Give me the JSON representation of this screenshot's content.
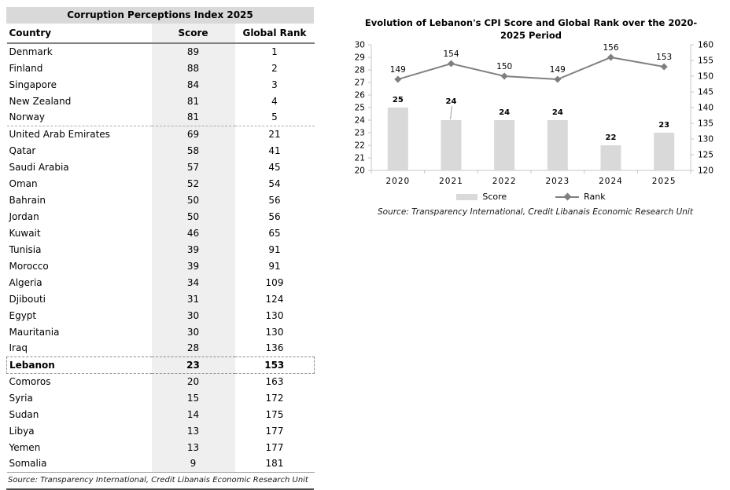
{
  "table": {
    "highlight_country": "Lebanon",
    "separator_after": "Norway",
    "source": "Source: Transparency International, Credit Libanais Economic Research Unit"
  },
  "chart": {
    "source": "Source: Transparency International, Credit Libanais Economic Research Unit"
  },
  "chart_data": [
    {
      "type": "table",
      "title": "Corruption Perceptions Index 2025",
      "columns": [
        "Country",
        "Score",
        "Global Rank"
      ],
      "rows": [
        [
          "Denmark",
          89,
          1
        ],
        [
          "Finland",
          88,
          2
        ],
        [
          "Singapore",
          84,
          3
        ],
        [
          "New Zealand",
          81,
          4
        ],
        [
          "Norway",
          81,
          5
        ],
        [
          "United Arab Emirates",
          69,
          21
        ],
        [
          "Qatar",
          58,
          41
        ],
        [
          "Saudi Arabia",
          57,
          45
        ],
        [
          "Oman",
          52,
          54
        ],
        [
          "Bahrain",
          50,
          56
        ],
        [
          "Jordan",
          50,
          56
        ],
        [
          "Kuwait",
          46,
          65
        ],
        [
          "Tunisia",
          39,
          91
        ],
        [
          "Morocco",
          39,
          91
        ],
        [
          "Algeria",
          34,
          109
        ],
        [
          "Djibouti",
          31,
          124
        ],
        [
          "Egypt",
          30,
          130
        ],
        [
          "Mauritania",
          30,
          130
        ],
        [
          "Iraq",
          28,
          136
        ],
        [
          "Lebanon",
          23,
          153
        ],
        [
          "Comoros",
          20,
          163
        ],
        [
          "Syria",
          15,
          172
        ],
        [
          "Sudan",
          14,
          175
        ],
        [
          "Libya",
          13,
          177
        ],
        [
          "Yemen",
          13,
          177
        ],
        [
          "Somalia",
          9,
          181
        ]
      ]
    },
    {
      "type": "bar",
      "title": "Evolution of Lebanon's CPI Score and Global Rank over the 2020-2025 Period",
      "categories": [
        "2020",
        "2021",
        "2022",
        "2023",
        "2024",
        "2025"
      ],
      "series": [
        {
          "name": "Score",
          "type": "bar",
          "axis": "left",
          "values": [
            25,
            24,
            24,
            24,
            22,
            23
          ]
        },
        {
          "name": "Rank",
          "type": "line",
          "axis": "right",
          "values": [
            149,
            154,
            150,
            149,
            156,
            153
          ]
        }
      ],
      "left_axis": {
        "min": 20,
        "max": 30,
        "step": 1
      },
      "right_axis": {
        "min": 120,
        "max": 160,
        "step": 5
      },
      "grid": false,
      "legend_position": "bottom",
      "score_label_leader_index": 1,
      "colors": {
        "bar": "#d9d9d9",
        "line": "#808080",
        "marker": "#7f7f7f",
        "axis": "#c6c6c6"
      }
    }
  ]
}
